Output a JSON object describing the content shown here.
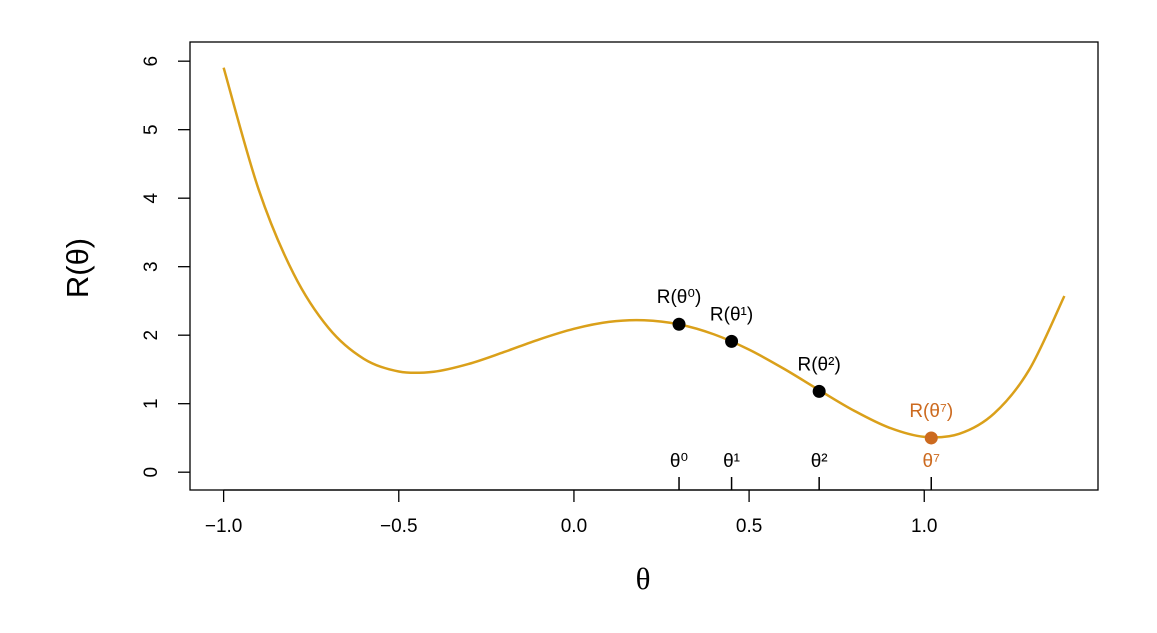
{
  "chart_data": {
    "type": "line",
    "x_label": "θ",
    "y_label": "R(θ)",
    "x": [
      -1.0,
      -0.9,
      -0.8,
      -0.7,
      -0.6,
      -0.5,
      -0.4,
      -0.3,
      -0.2,
      -0.1,
      0.0,
      0.1,
      0.2,
      0.3,
      0.4,
      0.5,
      0.6,
      0.7,
      0.8,
      0.9,
      1.0,
      1.1,
      1.2,
      1.3,
      1.4
    ],
    "values": [
      5.905,
      4.126,
      2.894,
      2.102,
      1.656,
      1.47,
      1.467,
      1.581,
      1.753,
      1.937,
      2.093,
      2.194,
      2.218,
      2.158,
      2.012,
      1.789,
      1.508,
      1.198,
      0.897,
      0.65,
      0.516,
      0.561,
      0.86,
      1.498,
      2.572
    ],
    "color": "#daa01a",
    "xlim": [
      -1.096,
      1.496
    ],
    "ylim": [
      -0.26,
      6.28
    ],
    "xticks": [
      {
        "value": -1.0,
        "label": "−1.0"
      },
      {
        "value": -0.5,
        "label": "−0.5"
      },
      {
        "value": 0.0,
        "label": "0.0"
      },
      {
        "value": 0.5,
        "label": "0.5"
      },
      {
        "value": 1.0,
        "label": "1.0"
      }
    ],
    "yticks": [
      0,
      1,
      2,
      3,
      4,
      5,
      6
    ],
    "points": {
      "x": [
        0.3,
        0.45,
        0.7,
        1.02
      ],
      "y": [
        2.16,
        1.91,
        1.18,
        0.5
      ],
      "labels": [
        "R(θ⁰)",
        "R(θ¹)",
        "R(θ²)",
        "R(θ⁷)"
      ],
      "tick_labels": [
        "θ⁰",
        "θ¹",
        "θ²",
        "θ⁷"
      ],
      "colors": [
        "#000000",
        "#000000",
        "#000000",
        "#cc6a1f"
      ]
    }
  }
}
